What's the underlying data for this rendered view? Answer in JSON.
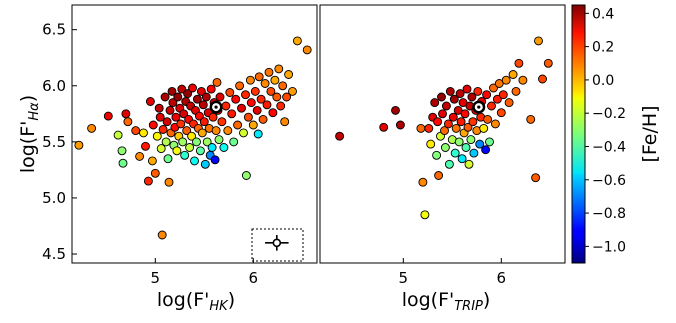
{
  "chart_data": [
    {
      "type": "scatter",
      "panel": "left",
      "xlabel": "log(F'HK)",
      "xlabel_main": "log(F'",
      "xlabel_sub": "HK",
      "xlabel_close": ")",
      "ylabel": "log(F'Hα)",
      "ylabel_main": "log(F'",
      "ylabel_sub": "Hα",
      "ylabel_close": ")",
      "xlim": [
        4.15,
        6.65
      ],
      "ylim": [
        4.42,
        6.72
      ],
      "xticks": [
        {
          "value": 5,
          "label": "5"
        },
        {
          "value": 6,
          "label": "6"
        }
      ],
      "yticks": [
        {
          "value": 4.5,
          "label": "4.5"
        },
        {
          "value": 5.0,
          "label": "5.0"
        },
        {
          "value": 5.5,
          "label": "5.5"
        },
        {
          "value": 6.0,
          "label": "6.0"
        },
        {
          "value": 6.5,
          "label": "6.5"
        }
      ],
      "reference_star": {
        "x": 5.62,
        "y": 5.81
      },
      "error_bar_inset": {
        "x": 6.24,
        "y": 4.6,
        "xerr": 0.12,
        "yerr": 0.07
      },
      "points": [
        {
          "x": 4.22,
          "y": 5.47,
          "feh": 0.02
        },
        {
          "x": 4.35,
          "y": 5.62,
          "feh": 0.05
        },
        {
          "x": 4.52,
          "y": 5.73,
          "feh": 0.28
        },
        {
          "x": 4.62,
          "y": 5.56,
          "feh": -0.22
        },
        {
          "x": 4.66,
          "y": 5.42,
          "feh": -0.3
        },
        {
          "x": 4.67,
          "y": 5.31,
          "feh": -0.35
        },
        {
          "x": 4.7,
          "y": 5.75,
          "feh": 0.3
        },
        {
          "x": 4.72,
          "y": 5.68,
          "feh": 0.1
        },
        {
          "x": 4.8,
          "y": 5.6,
          "feh": 0.15
        },
        {
          "x": 4.84,
          "y": 5.37,
          "feh": 0.05
        },
        {
          "x": 4.88,
          "y": 5.58,
          "feh": -0.1
        },
        {
          "x": 4.9,
          "y": 5.46,
          "feh": 0.22
        },
        {
          "x": 4.93,
          "y": 5.15,
          "feh": 0.2
        },
        {
          "x": 4.95,
          "y": 5.86,
          "feh": 0.3
        },
        {
          "x": 4.97,
          "y": 5.33,
          "feh": 0.0
        },
        {
          "x": 4.98,
          "y": 5.65,
          "feh": 0.25
        },
        {
          "x": 5.0,
          "y": 5.22,
          "feh": 0.12
        },
        {
          "x": 5.02,
          "y": 5.55,
          "feh": -0.12
        },
        {
          "x": 5.04,
          "y": 5.8,
          "feh": 0.35
        },
        {
          "x": 5.05,
          "y": 5.72,
          "feh": 0.3
        },
        {
          "x": 5.06,
          "y": 5.44,
          "feh": -0.2
        },
        {
          "x": 5.07,
          "y": 4.67,
          "feh": 0.05
        },
        {
          "x": 5.08,
          "y": 5.61,
          "feh": 0.2
        },
        {
          "x": 5.1,
          "y": 5.9,
          "feh": 0.38
        },
        {
          "x": 5.11,
          "y": 5.5,
          "feh": -0.25
        },
        {
          "x": 5.12,
          "y": 5.68,
          "feh": 0.32
        },
        {
          "x": 5.13,
          "y": 5.35,
          "feh": -0.35
        },
        {
          "x": 5.14,
          "y": 5.14,
          "feh": 0.05
        },
        {
          "x": 5.15,
          "y": 5.78,
          "feh": 0.33
        },
        {
          "x": 5.16,
          "y": 5.58,
          "feh": 0.1
        },
        {
          "x": 5.17,
          "y": 5.95,
          "feh": 0.4
        },
        {
          "x": 5.18,
          "y": 5.85,
          "feh": 0.36
        },
        {
          "x": 5.19,
          "y": 5.47,
          "feh": -0.3
        },
        {
          "x": 5.2,
          "y": 5.63,
          "feh": 0.25
        },
        {
          "x": 5.21,
          "y": 5.72,
          "feh": 0.28
        },
        {
          "x": 5.22,
          "y": 5.42,
          "feh": -0.15
        },
        {
          "x": 5.23,
          "y": 5.9,
          "feh": 0.42
        },
        {
          "x": 5.24,
          "y": 5.55,
          "feh": -0.05
        },
        {
          "x": 5.25,
          "y": 5.8,
          "feh": 0.3
        },
        {
          "x": 5.26,
          "y": 5.66,
          "feh": 0.18
        },
        {
          "x": 5.27,
          "y": 5.97,
          "feh": 0.35
        },
        {
          "x": 5.28,
          "y": 5.5,
          "feh": -0.28
        },
        {
          "x": 5.29,
          "y": 5.75,
          "feh": 0.32
        },
        {
          "x": 5.3,
          "y": 5.38,
          "feh": -0.45
        },
        {
          "x": 5.31,
          "y": 5.86,
          "feh": 0.38
        },
        {
          "x": 5.32,
          "y": 5.6,
          "feh": 0.12
        },
        {
          "x": 5.33,
          "y": 5.93,
          "feh": 0.42
        },
        {
          "x": 5.34,
          "y": 5.7,
          "feh": 0.26
        },
        {
          "x": 5.35,
          "y": 5.45,
          "feh": -0.22
        },
        {
          "x": 5.36,
          "y": 5.82,
          "feh": 0.34
        },
        {
          "x": 5.37,
          "y": 5.55,
          "feh": -0.1
        },
        {
          "x": 5.38,
          "y": 5.98,
          "feh": 0.28
        },
        {
          "x": 5.39,
          "y": 5.66,
          "feh": 0.2
        },
        {
          "x": 5.4,
          "y": 5.33,
          "feh": -0.5
        },
        {
          "x": 5.41,
          "y": 5.78,
          "feh": 0.3
        },
        {
          "x": 5.42,
          "y": 5.5,
          "feh": -0.32
        },
        {
          "x": 5.43,
          "y": 5.88,
          "feh": 0.4
        },
        {
          "x": 5.44,
          "y": 5.62,
          "feh": 0.1
        },
        {
          "x": 5.45,
          "y": 5.73,
          "feh": 0.25
        },
        {
          "x": 5.46,
          "y": 5.42,
          "feh": -0.38
        },
        {
          "x": 5.47,
          "y": 5.95,
          "feh": 0.3
        },
        {
          "x": 5.48,
          "y": 5.58,
          "feh": 0.0
        },
        {
          "x": 5.49,
          "y": 5.83,
          "feh": 0.36
        },
        {
          "x": 5.5,
          "y": 5.68,
          "feh": 0.22
        },
        {
          "x": 5.51,
          "y": 5.3,
          "feh": -0.6
        },
        {
          "x": 5.52,
          "y": 5.9,
          "feh": 0.38
        },
        {
          "x": 5.53,
          "y": 5.5,
          "feh": -0.28
        },
        {
          "x": 5.54,
          "y": 5.76,
          "feh": 0.3
        },
        {
          "x": 5.55,
          "y": 5.62,
          "feh": 0.08
        },
        {
          "x": 5.56,
          "y": 5.38,
          "feh": -0.7
        },
        {
          "x": 5.57,
          "y": 5.97,
          "feh": 0.25
        },
        {
          "x": 5.58,
          "y": 5.45,
          "feh": -0.55
        },
        {
          "x": 5.59,
          "y": 5.72,
          "feh": 0.2
        },
        {
          "x": 5.6,
          "y": 5.85,
          "feh": 0.32
        },
        {
          "x": 5.61,
          "y": 5.34,
          "feh": -0.9
        },
        {
          "x": 5.62,
          "y": 5.6,
          "feh": 0.05
        },
        {
          "x": 5.63,
          "y": 6.03,
          "feh": 0.1
        },
        {
          "x": 5.64,
          "y": 5.78,
          "feh": 0.28
        },
        {
          "x": 5.65,
          "y": 5.52,
          "feh": -0.3
        },
        {
          "x": 5.66,
          "y": 5.9,
          "feh": 0.3
        },
        {
          "x": 5.68,
          "y": 5.68,
          "feh": 0.18
        },
        {
          "x": 5.7,
          "y": 5.45,
          "feh": -0.5
        },
        {
          "x": 5.72,
          "y": 5.82,
          "feh": 0.2
        },
        {
          "x": 5.74,
          "y": 5.6,
          "feh": 0.05
        },
        {
          "x": 5.76,
          "y": 5.94,
          "feh": 0.15
        },
        {
          "x": 5.78,
          "y": 5.75,
          "feh": 0.22
        },
        {
          "x": 5.8,
          "y": 5.5,
          "feh": -0.35
        },
        {
          "x": 5.82,
          "y": 5.88,
          "feh": 0.25
        },
        {
          "x": 5.84,
          "y": 5.65,
          "feh": 0.1
        },
        {
          "x": 5.86,
          "y": 6.0,
          "feh": 0.1
        },
        {
          "x": 5.88,
          "y": 5.8,
          "feh": 0.3
        },
        {
          "x": 5.9,
          "y": 5.58,
          "feh": -0.2
        },
        {
          "x": 5.92,
          "y": 5.92,
          "feh": 0.2
        },
        {
          "x": 5.93,
          "y": 5.2,
          "feh": -0.3
        },
        {
          "x": 5.95,
          "y": 5.72,
          "feh": 0.15
        },
        {
          "x": 5.97,
          "y": 6.05,
          "feh": 0.05
        },
        {
          "x": 5.98,
          "y": 5.85,
          "feh": 0.25
        },
        {
          "x": 6.0,
          "y": 5.65,
          "feh": 0.0
        },
        {
          "x": 6.02,
          "y": 5.95,
          "feh": 0.18
        },
        {
          "x": 6.04,
          "y": 5.78,
          "feh": 0.3
        },
        {
          "x": 6.05,
          "y": 5.57,
          "feh": -0.55
        },
        {
          "x": 6.06,
          "y": 6.08,
          "feh": 0.1
        },
        {
          "x": 6.08,
          "y": 5.88,
          "feh": 0.2
        },
        {
          "x": 6.1,
          "y": 5.7,
          "feh": 0.12
        },
        {
          "x": 6.12,
          "y": 6.02,
          "feh": 0.05
        },
        {
          "x": 6.14,
          "y": 5.83,
          "feh": 0.22
        },
        {
          "x": 6.16,
          "y": 6.12,
          "feh": 0.08
        },
        {
          "x": 6.18,
          "y": 5.95,
          "feh": 0.15
        },
        {
          "x": 6.2,
          "y": 5.76,
          "feh": 0.25
        },
        {
          "x": 6.22,
          "y": 6.05,
          "feh": 0.0
        },
        {
          "x": 6.24,
          "y": 5.9,
          "feh": 0.12
        },
        {
          "x": 6.26,
          "y": 6.15,
          "feh": 0.05
        },
        {
          "x": 6.28,
          "y": 5.82,
          "feh": 0.2
        },
        {
          "x": 6.3,
          "y": 6.0,
          "feh": 0.1
        },
        {
          "x": 6.32,
          "y": 5.68,
          "feh": 0.05
        },
        {
          "x": 6.34,
          "y": 5.9,
          "feh": 0.15
        },
        {
          "x": 6.36,
          "y": 6.1,
          "feh": 0.0
        },
        {
          "x": 6.4,
          "y": 5.95,
          "feh": 0.02
        },
        {
          "x": 6.45,
          "y": 6.4,
          "feh": 0.0
        },
        {
          "x": 6.55,
          "y": 6.32,
          "feh": 0.05
        }
      ]
    },
    {
      "type": "scatter",
      "panel": "right",
      "xlabel": "log(F'TRIP)",
      "xlabel_main": "log(F'",
      "xlabel_sub": "TRIP",
      "xlabel_close": ")",
      "xlim": [
        4.15,
        6.65
      ],
      "ylim": [
        4.42,
        6.72
      ],
      "xticks": [
        {
          "value": 5,
          "label": "5"
        },
        {
          "value": 6,
          "label": "6"
        }
      ],
      "reference_star": {
        "x": 5.77,
        "y": 5.81
      },
      "points": [
        {
          "x": 4.35,
          "y": 5.55,
          "feh": 0.35
        },
        {
          "x": 4.8,
          "y": 5.63,
          "feh": 0.3
        },
        {
          "x": 4.92,
          "y": 5.78,
          "feh": 0.4
        },
        {
          "x": 4.97,
          "y": 5.65,
          "feh": 0.38
        },
        {
          "x": 5.18,
          "y": 5.62,
          "feh": 0.1
        },
        {
          "x": 5.2,
          "y": 5.14,
          "feh": 0.05
        },
        {
          "x": 5.22,
          "y": 4.85,
          "feh": -0.15
        },
        {
          "x": 5.26,
          "y": 5.62,
          "feh": 0.2
        },
        {
          "x": 5.28,
          "y": 5.48,
          "feh": -0.1
        },
        {
          "x": 5.3,
          "y": 5.72,
          "feh": 0.3
        },
        {
          "x": 5.32,
          "y": 5.85,
          "feh": 0.38
        },
        {
          "x": 5.34,
          "y": 5.38,
          "feh": -0.32
        },
        {
          "x": 5.35,
          "y": 5.68,
          "feh": 0.25
        },
        {
          "x": 5.36,
          "y": 5.2,
          "feh": 0.1
        },
        {
          "x": 5.38,
          "y": 5.55,
          "feh": -0.2
        },
        {
          "x": 5.39,
          "y": 5.9,
          "feh": 0.42
        },
        {
          "x": 5.4,
          "y": 5.75,
          "feh": 0.3
        },
        {
          "x": 5.42,
          "y": 5.6,
          "feh": 0.1
        },
        {
          "x": 5.43,
          "y": 5.45,
          "feh": -0.3
        },
        {
          "x": 5.44,
          "y": 5.82,
          "feh": 0.35
        },
        {
          "x": 5.46,
          "y": 5.66,
          "feh": 0.2
        },
        {
          "x": 5.47,
          "y": 5.3,
          "feh": -0.4
        },
        {
          "x": 5.48,
          "y": 5.95,
          "feh": 0.38
        },
        {
          "x": 5.5,
          "y": 5.52,
          "feh": -0.25
        },
        {
          "x": 5.51,
          "y": 5.72,
          "feh": 0.28
        },
        {
          "x": 5.52,
          "y": 5.88,
          "feh": 0.4
        },
        {
          "x": 5.53,
          "y": 5.4,
          "feh": -0.45
        },
        {
          "x": 5.54,
          "y": 5.62,
          "feh": 0.08
        },
        {
          "x": 5.56,
          "y": 5.78,
          "feh": 0.32
        },
        {
          "x": 5.57,
          "y": 5.5,
          "feh": -0.3
        },
        {
          "x": 5.58,
          "y": 5.93,
          "feh": 0.36
        },
        {
          "x": 5.59,
          "y": 5.68,
          "feh": 0.22
        },
        {
          "x": 5.6,
          "y": 5.35,
          "feh": -0.55
        },
        {
          "x": 5.61,
          "y": 5.85,
          "feh": 0.3
        },
        {
          "x": 5.62,
          "y": 5.58,
          "feh": 0.0
        },
        {
          "x": 5.63,
          "y": 5.75,
          "feh": 0.25
        },
        {
          "x": 5.64,
          "y": 5.45,
          "feh": -0.4
        },
        {
          "x": 5.65,
          "y": 5.97,
          "feh": 0.3
        },
        {
          "x": 5.66,
          "y": 5.63,
          "feh": 0.12
        },
        {
          "x": 5.67,
          "y": 5.3,
          "feh": -0.2
        },
        {
          "x": 5.68,
          "y": 5.82,
          "feh": 0.35
        },
        {
          "x": 5.69,
          "y": 5.52,
          "feh": -0.3
        },
        {
          "x": 5.7,
          "y": 5.9,
          "feh": 0.38
        },
        {
          "x": 5.71,
          "y": 5.68,
          "feh": 0.18
        },
        {
          "x": 5.72,
          "y": 5.4,
          "feh": -0.6
        },
        {
          "x": 5.74,
          "y": 5.78,
          "feh": 0.28
        },
        {
          "x": 5.75,
          "y": 5.6,
          "feh": 0.05
        },
        {
          "x": 5.76,
          "y": 5.95,
          "feh": 0.2
        },
        {
          "x": 5.78,
          "y": 5.48,
          "feh": -0.7
        },
        {
          "x": 5.79,
          "y": 5.72,
          "feh": 0.2
        },
        {
          "x": 5.8,
          "y": 5.86,
          "feh": 0.3
        },
        {
          "x": 5.82,
          "y": 5.62,
          "feh": -0.1
        },
        {
          "x": 5.84,
          "y": 5.43,
          "feh": -0.9
        },
        {
          "x": 5.85,
          "y": 5.92,
          "feh": 0.25
        },
        {
          "x": 5.86,
          "y": 5.7,
          "feh": 0.12
        },
        {
          "x": 5.88,
          "y": 5.5,
          "feh": -0.35
        },
        {
          "x": 5.9,
          "y": 5.82,
          "feh": 0.2
        },
        {
          "x": 5.92,
          "y": 5.98,
          "feh": 0.1
        },
        {
          "x": 5.94,
          "y": 5.66,
          "feh": 0.05
        },
        {
          "x": 5.96,
          "y": 5.88,
          "feh": 0.22
        },
        {
          "x": 5.98,
          "y": 6.02,
          "feh": 0.08
        },
        {
          "x": 6.0,
          "y": 5.76,
          "feh": 0.15
        },
        {
          "x": 6.02,
          "y": 5.92,
          "feh": 0.2
        },
        {
          "x": 6.05,
          "y": 6.05,
          "feh": 0.05
        },
        {
          "x": 6.08,
          "y": 5.85,
          "feh": 0.12
        },
        {
          "x": 6.12,
          "y": 6.1,
          "feh": 0.0
        },
        {
          "x": 6.15,
          "y": 5.95,
          "feh": 0.1
        },
        {
          "x": 6.18,
          "y": 6.2,
          "feh": 0.15
        },
        {
          "x": 6.22,
          "y": 6.05,
          "feh": 0.05
        },
        {
          "x": 6.3,
          "y": 5.7,
          "feh": 0.1
        },
        {
          "x": 6.35,
          "y": 5.18,
          "feh": 0.12
        },
        {
          "x": 6.38,
          "y": 6.4,
          "feh": 0.02
        },
        {
          "x": 6.42,
          "y": 6.06,
          "feh": 0.15
        },
        {
          "x": 6.48,
          "y": 6.2,
          "feh": 0.12
        }
      ]
    }
  ],
  "colorbar": {
    "label": "[Fe/H]",
    "colormap": "jet",
    "range": [
      -1.1,
      0.45
    ],
    "ticks": [
      {
        "value": 0.4,
        "label": "0.4"
      },
      {
        "value": 0.2,
        "label": "0.2"
      },
      {
        "value": 0.0,
        "label": "0.0"
      },
      {
        "value": -0.2,
        "label": "−0.2"
      },
      {
        "value": -0.4,
        "label": "−0.4"
      },
      {
        "value": -0.6,
        "label": "−0.6"
      },
      {
        "value": -0.8,
        "label": "−0.8"
      },
      {
        "value": -1.0,
        "label": "−1.0"
      }
    ]
  }
}
